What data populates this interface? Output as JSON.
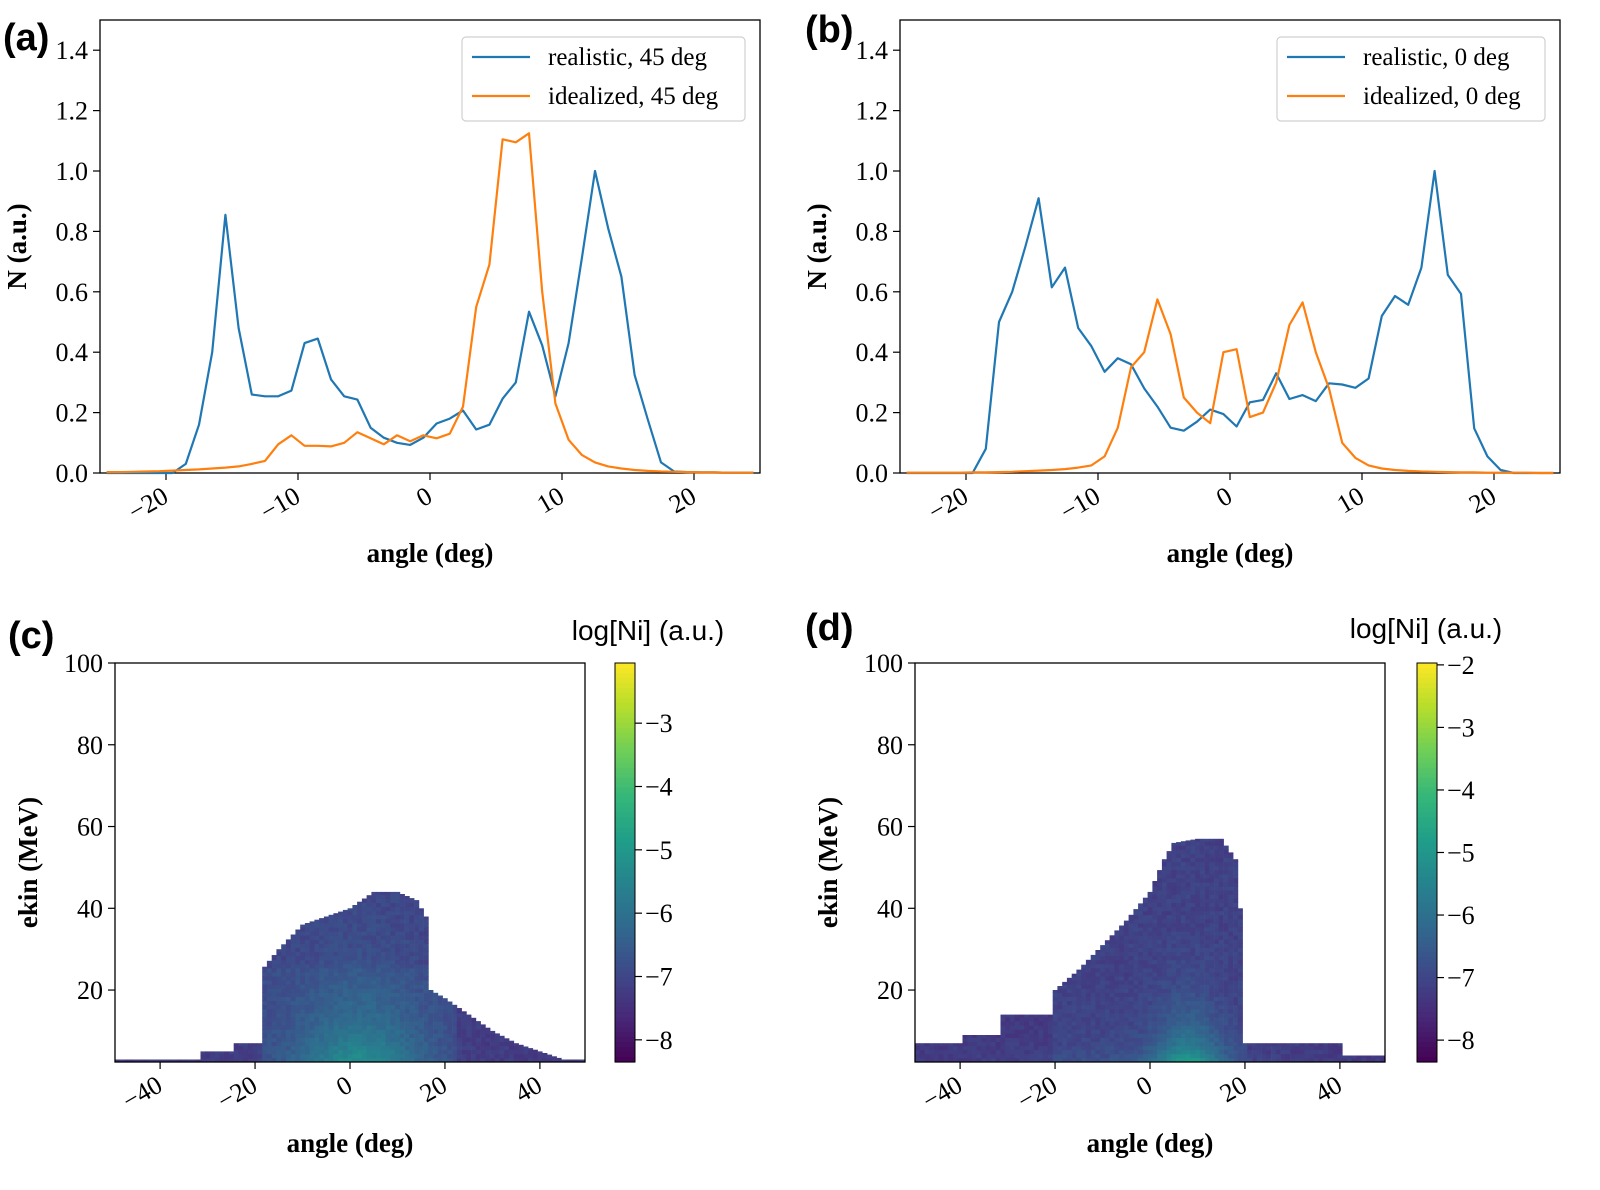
{
  "chart_data": [
    {
      "panel": "(a)",
      "type": "line",
      "xlabel": "angle (deg)",
      "ylabel": "N (a.u.)",
      "xlim": [
        -25,
        25
      ],
      "ylim": [
        0,
        1.5
      ],
      "xticks": [
        -20,
        -10,
        0,
        10,
        20
      ],
      "xtick_labels": [
        "−20",
        "−10",
        "0",
        "10",
        "20"
      ],
      "yticks": [
        0,
        0.2,
        0.4,
        0.6,
        0.8,
        1.0,
        1.2,
        1.4
      ],
      "ytick_labels": [
        "0.0",
        "0.2",
        "0.4",
        "0.6",
        "0.8",
        "1.0",
        "1.2",
        "1.4"
      ],
      "legend": "top-right",
      "grid": false,
      "x": [
        -24.5,
        -23.5,
        -22.5,
        -21.5,
        -20.5,
        -19.5,
        -18.5,
        -17.5,
        -16.5,
        -15.5,
        -14.5,
        -13.5,
        -12.5,
        -11.5,
        -10.5,
        -9.5,
        -8.5,
        -7.5,
        -6.5,
        -5.5,
        -4.5,
        -3.5,
        -2.5,
        -1.5,
        -0.5,
        0.5,
        1.5,
        2.5,
        3.5,
        4.5,
        5.5,
        6.5,
        7.5,
        8.5,
        9.5,
        10.5,
        11.5,
        12.5,
        13.5,
        14.5,
        15.5,
        16.5,
        17.5,
        18.5,
        19.5,
        20.5,
        21.5,
        22.5,
        23.5,
        24.5
      ],
      "series": [
        {
          "name": "realistic, 45 deg",
          "color": "#1f77b4",
          "values": [
            0,
            0,
            0,
            0,
            0,
            0,
            0.03,
            0.16,
            0.4,
            0.855,
            0.48,
            0.26,
            0.254,
            0.254,
            0.273,
            0.43,
            0.445,
            0.31,
            0.254,
            0.243,
            0.15,
            0.117,
            0.1,
            0.093,
            0.117,
            0.164,
            0.18,
            0.207,
            0.144,
            0.16,
            0.246,
            0.3,
            0.534,
            0.423,
            0.254,
            0.43,
            0.71,
            1.0,
            0.81,
            0.65,
            0.325,
            0.177,
            0.035,
            0.005,
            0.003,
            0.002,
            0.002,
            0.001,
            0.001,
            0.001
          ]
        },
        {
          "name": "idealized, 45 deg",
          "color": "#ff7f0e",
          "values": [
            0.003,
            0.003,
            0.004,
            0.005,
            0.006,
            0.008,
            0.01,
            0.012,
            0.015,
            0.018,
            0.022,
            0.03,
            0.04,
            0.095,
            0.125,
            0.09,
            0.09,
            0.088,
            0.1,
            0.135,
            0.115,
            0.095,
            0.125,
            0.105,
            0.125,
            0.115,
            0.13,
            0.22,
            0.55,
            0.69,
            1.105,
            1.095,
            1.125,
            0.6,
            0.23,
            0.11,
            0.06,
            0.035,
            0.022,
            0.015,
            0.01,
            0.007,
            0.005,
            0.004,
            0.003,
            0.002,
            0.002,
            0.001,
            0.001,
            0.001
          ]
        }
      ]
    },
    {
      "panel": "(b)",
      "type": "line",
      "xlabel": "angle (deg)",
      "ylabel": "N (a.u.)",
      "xlim": [
        -25,
        25
      ],
      "ylim": [
        0,
        1.5
      ],
      "xticks": [
        -20,
        -10,
        0,
        10,
        20
      ],
      "xtick_labels": [
        "−20",
        "−10",
        "0",
        "10",
        "20"
      ],
      "yticks": [
        0,
        0.2,
        0.4,
        0.6,
        0.8,
        1.0,
        1.2,
        1.4
      ],
      "ytick_labels": [
        "0.0",
        "0.2",
        "0.4",
        "0.6",
        "0.8",
        "1.0",
        "1.2",
        "1.4"
      ],
      "legend": "top-right",
      "grid": false,
      "x": [
        -24.5,
        -23.5,
        -22.5,
        -21.5,
        -20.5,
        -19.5,
        -18.5,
        -17.5,
        -16.5,
        -15.5,
        -14.5,
        -13.5,
        -12.5,
        -11.5,
        -10.5,
        -9.5,
        -8.5,
        -7.5,
        -6.5,
        -5.5,
        -4.5,
        -3.5,
        -2.5,
        -1.5,
        -0.5,
        0.5,
        1.5,
        2.5,
        3.5,
        4.5,
        5.5,
        6.5,
        7.5,
        8.5,
        9.5,
        10.5,
        11.5,
        12.5,
        13.5,
        14.5,
        15.5,
        16.5,
        17.5,
        18.5,
        19.5,
        20.5,
        21.5,
        22.5,
        23.5,
        24.5
      ],
      "series": [
        {
          "name": "realistic, 0 deg",
          "color": "#1f77b4",
          "values": [
            0,
            0,
            0,
            0,
            0,
            0,
            0.08,
            0.5,
            0.6,
            0.75,
            0.91,
            0.615,
            0.68,
            0.48,
            0.42,
            0.335,
            0.38,
            0.36,
            0.28,
            0.22,
            0.15,
            0.14,
            0.17,
            0.21,
            0.195,
            0.154,
            0.234,
            0.242,
            0.33,
            0.245,
            0.258,
            0.238,
            0.297,
            0.293,
            0.282,
            0.313,
            0.52,
            0.586,
            0.557,
            0.68,
            1.0,
            0.656,
            0.593,
            0.148,
            0.055,
            0.01,
            0,
            0,
            0,
            0
          ]
        },
        {
          "name": "idealized, 0 deg",
          "color": "#ff7f0e",
          "values": [
            0.001,
            0.001,
            0.001,
            0.001,
            0.001,
            0.002,
            0.002,
            0.003,
            0.004,
            0.006,
            0.008,
            0.01,
            0.013,
            0.018,
            0.025,
            0.055,
            0.15,
            0.35,
            0.4,
            0.575,
            0.46,
            0.25,
            0.2,
            0.165,
            0.4,
            0.41,
            0.185,
            0.2,
            0.3,
            0.49,
            0.565,
            0.4,
            0.28,
            0.1,
            0.05,
            0.025,
            0.015,
            0.01,
            0.007,
            0.005,
            0.004,
            0.003,
            0.002,
            0.002,
            0.001,
            0.001,
            0.001,
            0.001,
            0,
            0
          ]
        }
      ]
    },
    {
      "panel": "(c)",
      "type": "heatmap",
      "xlabel": "angle (deg)",
      "ylabel": "ekin (MeV)",
      "xlim": [
        -49.5,
        49.5
      ],
      "ylim": [
        2.4,
        100
      ],
      "xticks": [
        -40,
        -20,
        0,
        20,
        40
      ],
      "xtick_labels": [
        "−40",
        "−20",
        "0",
        "20",
        "40"
      ],
      "yticks": [
        20,
        40,
        60,
        80,
        100
      ],
      "ytick_labels": [
        "20",
        "40",
        "60",
        "80",
        "100"
      ],
      "colorbar": {
        "label": "log[Ni] (a.u.)",
        "colormap": "viridis",
        "vlim": [
          -8.35,
          -2.05
        ],
        "ticks": [
          -3,
          -4,
          -5,
          -6,
          -7,
          -8
        ],
        "tick_labels": [
          "−3",
          "−4",
          "−5",
          "−6",
          "−7",
          "−8"
        ]
      },
      "support_upper_edge": {
        "angle": [
          -49.5,
          -32,
          -31,
          -25,
          -24,
          -19,
          -18.5,
          -15,
          -10,
          -5,
          0,
          5,
          10,
          14,
          16,
          17,
          20,
          25,
          30,
          35,
          40,
          45,
          49.5
        ],
        "ekin": [
          3,
          3,
          5,
          5,
          7,
          7,
          25,
          30,
          36,
          38,
          40,
          44,
          44,
          42,
          38,
          20,
          18,
          14,
          10,
          7,
          5,
          3,
          3
        ]
      }
    },
    {
      "panel": "(d)",
      "type": "heatmap",
      "xlabel": "angle (deg)",
      "ylabel": "ekin (MeV)",
      "xlim": [
        -49.5,
        49.5
      ],
      "ylim": [
        2.4,
        100
      ],
      "xticks": [
        -40,
        -20,
        0,
        20,
        40
      ],
      "xtick_labels": [
        "−40",
        "−20",
        "0",
        "20",
        "40"
      ],
      "yticks": [
        20,
        40,
        60,
        80,
        100
      ],
      "ytick_labels": [
        "20",
        "40",
        "60",
        "80",
        "100"
      ],
      "colorbar": {
        "label": "log[Ni] (a.u.)",
        "colormap": "viridis",
        "vlim": [
          -8.35,
          -1.97
        ],
        "ticks": [
          -2,
          -3,
          -4,
          -5,
          -6,
          -7,
          -8
        ],
        "tick_labels": [
          "−2",
          "−3",
          "−4",
          "−5",
          "−6",
          "−7",
          "−8"
        ]
      },
      "support_upper_edge": {
        "angle": [
          -49.5,
          -40,
          -39.5,
          -32,
          -31.5,
          -20.5,
          -20,
          -15,
          -10,
          -5,
          0,
          3,
          5,
          10,
          15,
          18,
          19,
          19.5,
          20,
          40,
          41,
          49.5
        ],
        "ekin": [
          7,
          7,
          9,
          9,
          14,
          14,
          20,
          25,
          31,
          37,
          44,
          52,
          56,
          57,
          57,
          52,
          40,
          20,
          7,
          7,
          4,
          4
        ]
      }
    }
  ]
}
